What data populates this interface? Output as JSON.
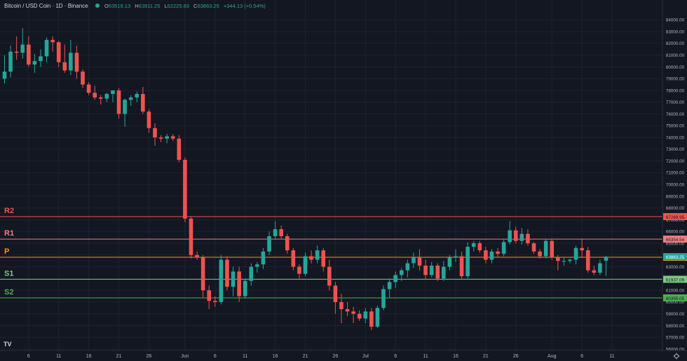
{
  "header": {
    "title": "Bitcoin / USD Coin · 1D · Binance",
    "o_label": "O",
    "o_value": "63519.13",
    "h_label": "H",
    "h_value": "63911.25",
    "l_label": "L",
    "l_value": "62225.83",
    "c_label": "C",
    "c_value": "63863.25",
    "change": "+344.13 (+0.54%)"
  },
  "logo": {
    "text": "TV"
  },
  "colors": {
    "background": "#131722",
    "grid": "#1e222d",
    "axis_text": "#b2b5be",
    "up": "#26a69a",
    "down": "#ef5350",
    "R2": "#ef5350",
    "R1": "#f77c80",
    "P": "#ff9800",
    "S1": "#81c784",
    "S2": "#4caf50"
  },
  "chart_data": {
    "type": "candlestick",
    "ylim": [
      56000,
      84500
    ],
    "y_ticks": [
      56000,
      57000,
      58000,
      59000,
      60000,
      61000,
      62000,
      63000,
      64000,
      65000,
      66000,
      67000,
      68000,
      69000,
      70000,
      71000,
      72000,
      73000,
      74000,
      75000,
      76000,
      77000,
      78000,
      79000,
      80000,
      81000,
      82000,
      83000,
      84000
    ],
    "y_tick_labels": [
      "56000.00",
      "57000.00",
      "58000.00",
      "59000.00",
      "60000.00",
      "61000.00",
      "62000.00",
      "63000.00",
      "64000.00",
      "65000.00",
      "66000.00",
      "67000.00",
      "68000.00",
      "69000.00",
      "70000.00",
      "71000.00",
      "72000.00",
      "73000.00",
      "74000.00",
      "75000.00",
      "76000.00",
      "77000.00",
      "78000.00",
      "79000.00",
      "80000.00",
      "81000.00",
      "82000.00",
      "83000.00",
      "84000.00"
    ],
    "x_ticks": [
      {
        "label": "6",
        "index": 4
      },
      {
        "label": "11",
        "index": 9
      },
      {
        "label": "16",
        "index": 14
      },
      {
        "label": "21",
        "index": 19
      },
      {
        "label": "26",
        "index": 24
      },
      {
        "label": "Jun",
        "index": 30
      },
      {
        "label": "6",
        "index": 35
      },
      {
        "label": "11",
        "index": 40
      },
      {
        "label": "16",
        "index": 45
      },
      {
        "label": "21",
        "index": 50
      },
      {
        "label": "26",
        "index": 55
      },
      {
        "label": "Jul",
        "index": 60
      },
      {
        "label": "6",
        "index": 65
      },
      {
        "label": "11",
        "index": 70
      },
      {
        "label": "16",
        "index": 75
      },
      {
        "label": "21",
        "index": 80
      },
      {
        "label": "26",
        "index": 85
      },
      {
        "label": "Aug",
        "index": 91
      },
      {
        "label": "6",
        "index": 96
      },
      {
        "label": "11",
        "index": 101
      }
    ],
    "pivot_levels": [
      {
        "name": "R2",
        "value": 67269.95,
        "label": "67269.95"
      },
      {
        "name": "R1",
        "value": 65354.54,
        "label": "65354.54"
      },
      {
        "name": "P",
        "value": 63812.5,
        "label": "63812.50"
      },
      {
        "name": "S1",
        "value": 61937.09,
        "label": "61937.09"
      },
      {
        "name": "S2",
        "value": 60355.05,
        "label": "60355.05"
      }
    ],
    "last_price": {
      "value": 63863.25,
      "label": "63863.25"
    },
    "candles": [
      {
        "o": 79000,
        "h": 81000,
        "l": 78600,
        "c": 79600
      },
      {
        "o": 79600,
        "h": 81800,
        "l": 79100,
        "c": 81300
      },
      {
        "o": 81300,
        "h": 82600,
        "l": 80600,
        "c": 81200
      },
      {
        "o": 81200,
        "h": 83300,
        "l": 80700,
        "c": 81900
      },
      {
        "o": 81900,
        "h": 82600,
        "l": 80000,
        "c": 80200
      },
      {
        "o": 80200,
        "h": 81100,
        "l": 79500,
        "c": 80500
      },
      {
        "o": 80500,
        "h": 81500,
        "l": 80000,
        "c": 80900
      },
      {
        "o": 80900,
        "h": 82500,
        "l": 80400,
        "c": 82300
      },
      {
        "o": 82300,
        "h": 82600,
        "l": 81300,
        "c": 82100
      },
      {
        "o": 82100,
        "h": 82200,
        "l": 80000,
        "c": 80400
      },
      {
        "o": 80400,
        "h": 81900,
        "l": 79500,
        "c": 79700
      },
      {
        "o": 79700,
        "h": 82300,
        "l": 79300,
        "c": 81200
      },
      {
        "o": 81200,
        "h": 81800,
        "l": 79000,
        "c": 79600
      },
      {
        "o": 79600,
        "h": 79800,
        "l": 78200,
        "c": 78500
      },
      {
        "o": 78500,
        "h": 78700,
        "l": 77600,
        "c": 77800
      },
      {
        "o": 77800,
        "h": 78400,
        "l": 77200,
        "c": 77400
      },
      {
        "o": 77400,
        "h": 77600,
        "l": 76800,
        "c": 77300
      },
      {
        "o": 77300,
        "h": 77800,
        "l": 77000,
        "c": 77700
      },
      {
        "o": 77700,
        "h": 78000,
        "l": 77000,
        "c": 78000
      },
      {
        "o": 78000,
        "h": 78200,
        "l": 75600,
        "c": 76000
      },
      {
        "o": 76000,
        "h": 77300,
        "l": 74900,
        "c": 77200
      },
      {
        "o": 77200,
        "h": 77600,
        "l": 76700,
        "c": 77400
      },
      {
        "o": 77400,
        "h": 77900,
        "l": 77000,
        "c": 77700
      },
      {
        "o": 77700,
        "h": 78300,
        "l": 76000,
        "c": 76200
      },
      {
        "o": 76200,
        "h": 76400,
        "l": 74400,
        "c": 74800
      },
      {
        "o": 74800,
        "h": 75200,
        "l": 73300,
        "c": 74000
      },
      {
        "o": 74000,
        "h": 74200,
        "l": 73600,
        "c": 73900
      },
      {
        "o": 73900,
        "h": 74300,
        "l": 73500,
        "c": 74100
      },
      {
        "o": 74100,
        "h": 74300,
        "l": 73700,
        "c": 73900
      },
      {
        "o": 73900,
        "h": 74200,
        "l": 71900,
        "c": 72100
      },
      {
        "o": 72100,
        "h": 72300,
        "l": 66800,
        "c": 67100
      },
      {
        "o": 67100,
        "h": 67300,
        "l": 63700,
        "c": 64000
      },
      {
        "o": 64000,
        "h": 64300,
        "l": 63600,
        "c": 63800
      },
      {
        "o": 63800,
        "h": 64000,
        "l": 60400,
        "c": 61000
      },
      {
        "o": 61000,
        "h": 61400,
        "l": 59400,
        "c": 60100
      },
      {
        "o": 60100,
        "h": 60500,
        "l": 59600,
        "c": 60000
      },
      {
        "o": 60000,
        "h": 64000,
        "l": 59800,
        "c": 63600
      },
      {
        "o": 63600,
        "h": 63900,
        "l": 61000,
        "c": 61300
      },
      {
        "o": 61300,
        "h": 63000,
        "l": 60500,
        "c": 62600
      },
      {
        "o": 62600,
        "h": 63000,
        "l": 60000,
        "c": 60500
      },
      {
        "o": 60500,
        "h": 62000,
        "l": 60300,
        "c": 61800
      },
      {
        "o": 61800,
        "h": 63300,
        "l": 61400,
        "c": 63000
      },
      {
        "o": 63000,
        "h": 63400,
        "l": 62500,
        "c": 63200
      },
      {
        "o": 63200,
        "h": 64600,
        "l": 62800,
        "c": 64300
      },
      {
        "o": 64300,
        "h": 66000,
        "l": 64000,
        "c": 65600
      },
      {
        "o": 65600,
        "h": 66900,
        "l": 65300,
        "c": 66200
      },
      {
        "o": 66200,
        "h": 66500,
        "l": 65400,
        "c": 65600
      },
      {
        "o": 65600,
        "h": 65800,
        "l": 64100,
        "c": 64400
      },
      {
        "o": 64400,
        "h": 64600,
        "l": 62700,
        "c": 63000
      },
      {
        "o": 63000,
        "h": 63200,
        "l": 62000,
        "c": 62400
      },
      {
        "o": 62400,
        "h": 64200,
        "l": 62200,
        "c": 63900
      },
      {
        "o": 63900,
        "h": 64400,
        "l": 63300,
        "c": 63600
      },
      {
        "o": 63600,
        "h": 64800,
        "l": 63300,
        "c": 64400
      },
      {
        "o": 64400,
        "h": 64600,
        "l": 62600,
        "c": 63000
      },
      {
        "o": 63000,
        "h": 63600,
        "l": 61000,
        "c": 61400
      },
      {
        "o": 61400,
        "h": 61700,
        "l": 59000,
        "c": 60000
      },
      {
        "o": 60000,
        "h": 60700,
        "l": 58200,
        "c": 59400
      },
      {
        "o": 59400,
        "h": 60000,
        "l": 58800,
        "c": 59200
      },
      {
        "o": 59200,
        "h": 59600,
        "l": 58200,
        "c": 59000
      },
      {
        "o": 59000,
        "h": 59300,
        "l": 58400,
        "c": 58600
      },
      {
        "o": 58600,
        "h": 59500,
        "l": 58200,
        "c": 59200
      },
      {
        "o": 59200,
        "h": 59500,
        "l": 57600,
        "c": 57900
      },
      {
        "o": 57900,
        "h": 59700,
        "l": 57800,
        "c": 59500
      },
      {
        "o": 59500,
        "h": 61400,
        "l": 59300,
        "c": 61100
      },
      {
        "o": 61100,
        "h": 62000,
        "l": 60400,
        "c": 61700
      },
      {
        "o": 61700,
        "h": 62600,
        "l": 61200,
        "c": 62300
      },
      {
        "o": 62300,
        "h": 62900,
        "l": 61800,
        "c": 62700
      },
      {
        "o": 62700,
        "h": 63600,
        "l": 62100,
        "c": 63300
      },
      {
        "o": 63300,
        "h": 64200,
        "l": 62900,
        "c": 63800
      },
      {
        "o": 63800,
        "h": 64500,
        "l": 62700,
        "c": 63100
      },
      {
        "o": 63100,
        "h": 63600,
        "l": 61900,
        "c": 62300
      },
      {
        "o": 62300,
        "h": 63400,
        "l": 62100,
        "c": 63100
      },
      {
        "o": 63100,
        "h": 63300,
        "l": 61800,
        "c": 62000
      },
      {
        "o": 62000,
        "h": 63500,
        "l": 61800,
        "c": 63000
      },
      {
        "o": 63000,
        "h": 64000,
        "l": 62700,
        "c": 63800
      },
      {
        "o": 63800,
        "h": 64500,
        "l": 63400,
        "c": 63900
      },
      {
        "o": 63900,
        "h": 64300,
        "l": 62000,
        "c": 62200
      },
      {
        "o": 62200,
        "h": 65100,
        "l": 62000,
        "c": 64700
      },
      {
        "o": 64700,
        "h": 65200,
        "l": 64300,
        "c": 65000
      },
      {
        "o": 65000,
        "h": 65200,
        "l": 64200,
        "c": 64400
      },
      {
        "o": 64400,
        "h": 64700,
        "l": 63300,
        "c": 63600
      },
      {
        "o": 63600,
        "h": 64500,
        "l": 63300,
        "c": 64300
      },
      {
        "o": 64300,
        "h": 64600,
        "l": 63800,
        "c": 64100
      },
      {
        "o": 64100,
        "h": 65400,
        "l": 63900,
        "c": 65100
      },
      {
        "o": 65100,
        "h": 66900,
        "l": 64900,
        "c": 66100
      },
      {
        "o": 66100,
        "h": 66400,
        "l": 65000,
        "c": 65200
      },
      {
        "o": 65200,
        "h": 66300,
        "l": 64900,
        "c": 65800
      },
      {
        "o": 65800,
        "h": 66200,
        "l": 64800,
        "c": 65000
      },
      {
        "o": 65000,
        "h": 65100,
        "l": 64100,
        "c": 64300
      },
      {
        "o": 64300,
        "h": 64500,
        "l": 63700,
        "c": 63900
      },
      {
        "o": 63900,
        "h": 65400,
        "l": 63700,
        "c": 65200
      },
      {
        "o": 65200,
        "h": 65400,
        "l": 63600,
        "c": 63800
      },
      {
        "o": 63800,
        "h": 64000,
        "l": 62700,
        "c": 63500
      },
      {
        "o": 63500,
        "h": 63800,
        "l": 63100,
        "c": 63500
      },
      {
        "o": 63500,
        "h": 63700,
        "l": 63300,
        "c": 63600
      },
      {
        "o": 63600,
        "h": 64800,
        "l": 63200,
        "c": 64600
      },
      {
        "o": 64600,
        "h": 65400,
        "l": 63800,
        "c": 64400
      },
      {
        "o": 64400,
        "h": 64700,
        "l": 62500,
        "c": 62700
      },
      {
        "o": 62700,
        "h": 63100,
        "l": 62300,
        "c": 62500
      },
      {
        "o": 62500,
        "h": 63600,
        "l": 62300,
        "c": 63300
      },
      {
        "o": 63519.13,
        "h": 63911.25,
        "l": 62225.83,
        "c": 63863.25
      }
    ]
  }
}
